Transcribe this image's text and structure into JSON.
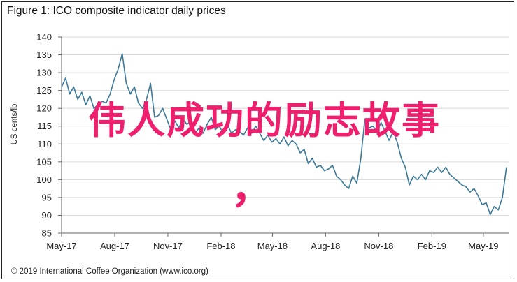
{
  "figure": {
    "title": "Figure 1: ICO composite indicator daily prices",
    "copyright": "© 2019 International Coffee Organization (www.ico.org)",
    "overlay_text": "伟人成功的励志故事",
    "overlay_comma": "，",
    "overlay_color": "#ee1f6c"
  },
  "chart_data": {
    "type": "line",
    "title": "Figure 1: ICO composite indicator daily prices",
    "ylabel": "US cents/lb",
    "xlabel": "",
    "ylim": [
      85,
      140
    ],
    "yticks": [
      85,
      90,
      95,
      100,
      105,
      110,
      115,
      120,
      125,
      130,
      135,
      140
    ],
    "x_range": [
      "2017-05-01",
      "2019-06-15"
    ],
    "xticks": [
      {
        "date": "2017-05-01",
        "label": "May-17"
      },
      {
        "date": "2017-08-01",
        "label": "Aug-17"
      },
      {
        "date": "2017-11-01",
        "label": "Nov-17"
      },
      {
        "date": "2018-02-01",
        "label": "Feb-18"
      },
      {
        "date": "2018-05-01",
        "label": "May-18"
      },
      {
        "date": "2018-08-01",
        "label": "Aug-18"
      },
      {
        "date": "2018-11-01",
        "label": "Nov-18"
      },
      {
        "date": "2019-02-01",
        "label": "Feb-19"
      },
      {
        "date": "2019-05-01",
        "label": "May-19"
      }
    ],
    "grid": "horizontal",
    "line_color": "#3d7a9a",
    "series": [
      {
        "x": [
          "2017-05-01",
          "2017-05-08",
          "2017-05-15",
          "2017-05-22",
          "2017-05-29",
          "2017-06-05",
          "2017-06-12",
          "2017-06-19",
          "2017-06-26",
          "2017-07-03",
          "2017-07-10",
          "2017-07-17",
          "2017-07-24",
          "2017-07-31",
          "2017-08-07",
          "2017-08-14",
          "2017-08-21",
          "2017-08-28",
          "2017-09-04",
          "2017-09-11",
          "2017-09-18",
          "2017-09-25",
          "2017-10-02",
          "2017-10-09",
          "2017-10-16",
          "2017-10-23",
          "2017-10-30",
          "2017-11-06",
          "2017-11-13",
          "2017-11-20",
          "2017-11-27",
          "2017-12-04",
          "2017-12-11",
          "2017-12-18",
          "2017-12-25",
          "2018-01-01",
          "2018-01-08",
          "2018-01-15",
          "2018-01-22",
          "2018-01-29",
          "2018-02-05",
          "2018-02-12",
          "2018-02-19",
          "2018-02-26",
          "2018-03-05",
          "2018-03-12",
          "2018-03-19",
          "2018-03-26",
          "2018-04-02",
          "2018-04-09",
          "2018-04-16",
          "2018-04-23",
          "2018-04-30",
          "2018-05-07",
          "2018-05-14",
          "2018-05-21",
          "2018-05-28",
          "2018-06-04",
          "2018-06-11",
          "2018-06-18",
          "2018-06-25",
          "2018-07-02",
          "2018-07-09",
          "2018-07-16",
          "2018-07-23",
          "2018-07-30",
          "2018-08-06",
          "2018-08-13",
          "2018-08-20",
          "2018-08-27",
          "2018-09-03",
          "2018-09-10",
          "2018-09-17",
          "2018-09-24",
          "2018-10-01",
          "2018-10-08",
          "2018-10-15",
          "2018-10-22",
          "2018-10-29",
          "2018-11-05",
          "2018-11-12",
          "2018-11-19",
          "2018-11-26",
          "2018-12-03",
          "2018-12-10",
          "2018-12-17",
          "2018-12-24",
          "2018-12-31",
          "2019-01-07",
          "2019-01-14",
          "2019-01-21",
          "2019-01-28",
          "2019-02-04",
          "2019-02-11",
          "2019-02-18",
          "2019-02-25",
          "2019-03-04",
          "2019-03-11",
          "2019-03-18",
          "2019-03-25",
          "2019-04-01",
          "2019-04-08",
          "2019-04-15",
          "2019-04-22",
          "2019-04-29",
          "2019-05-06",
          "2019-05-13",
          "2019-05-20",
          "2019-05-27",
          "2019-06-03",
          "2019-06-10"
        ],
        "y": [
          126,
          128.5,
          124,
          126,
          122.5,
          124.5,
          121,
          123.5,
          120,
          121,
          122,
          121.5,
          124,
          128,
          131,
          135.3,
          127,
          124,
          126,
          121.5,
          120,
          122.5,
          127,
          117.5,
          118,
          120,
          117,
          114,
          116.5,
          114.5,
          117,
          115.5,
          116.5,
          113,
          114.5,
          113,
          115.5,
          117.5,
          114,
          115,
          113,
          115.5,
          113,
          114,
          113.5,
          112.5,
          114.5,
          113,
          115,
          113,
          111,
          112.5,
          110.5,
          111.5,
          110,
          112,
          109.5,
          111,
          110,
          107.5,
          108.5,
          104.5,
          106,
          103.5,
          104,
          102.5,
          103,
          104,
          101,
          100,
          98.5,
          97.5,
          101,
          99,
          106,
          117,
          114.5,
          115,
          113.5,
          116,
          113.5,
          111,
          113.5,
          110.5,
          106,
          103.5,
          98.5,
          101,
          100,
          101.5,
          100,
          102.5,
          102,
          103.5,
          102,
          103.5,
          101.5,
          100.5,
          99.5,
          98.5,
          98,
          96.5,
          97.5,
          95.5,
          93,
          93.5,
          90.2,
          92.5,
          91.5,
          95,
          103.5
        ]
      }
    ]
  }
}
